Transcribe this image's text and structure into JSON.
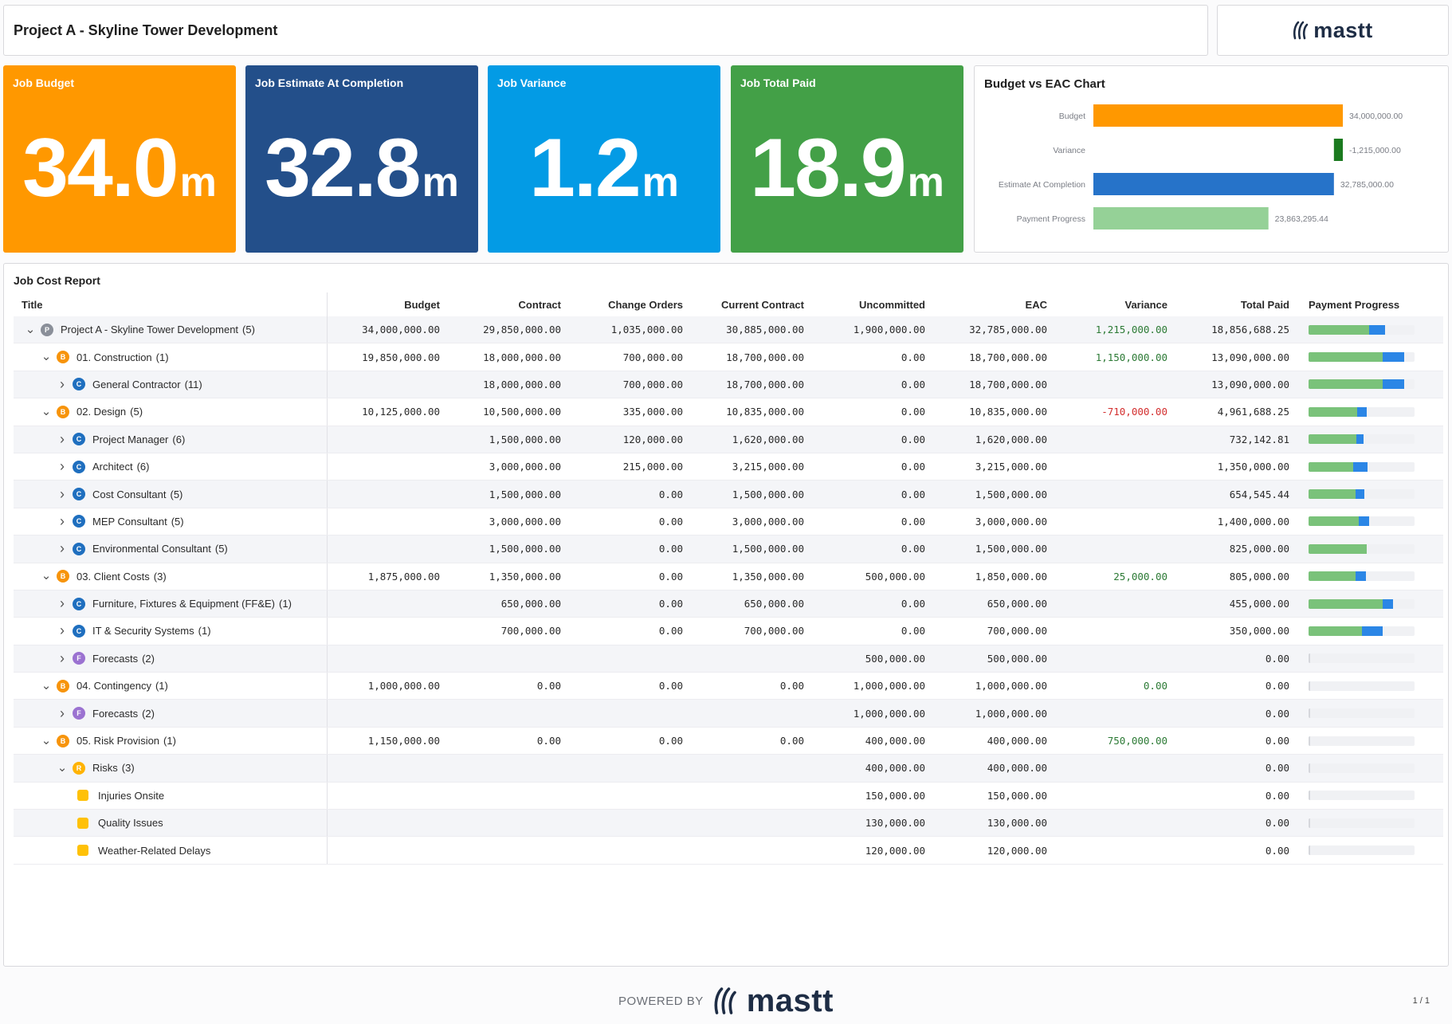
{
  "header": {
    "title": "Project A - Skyline Tower Development",
    "logo_text": "mastt"
  },
  "kpis": [
    {
      "label": "Job Budget",
      "value": "34.0",
      "unit": "m",
      "color": "#ff9800"
    },
    {
      "label": "Job Estimate At Completion",
      "value": "32.8",
      "unit": "m",
      "color": "#234f8a"
    },
    {
      "label": "Job Variance",
      "value": "1.2",
      "unit": "m",
      "color": "#039be5"
    },
    {
      "label": "Job Total Paid",
      "value": "18.9",
      "unit": "m",
      "color": "#43a047"
    }
  ],
  "chart": {
    "title": "Budget vs EAC Chart"
  },
  "chart_data": {
    "type": "bar",
    "orientation": "horizontal",
    "title": "Budget vs EAC Chart",
    "categories": [
      "Budget",
      "Variance",
      "Estimate At Completion",
      "Payment Progress"
    ],
    "values": [
      34000000,
      -1215000,
      32785000,
      23863295.44
    ],
    "labels": [
      "34,000,000.00",
      "-1,215,000.00",
      "32,785,000.00",
      "23,863,295.44"
    ],
    "colors": [
      "#ff9800",
      "#1b7a1f",
      "#2673c9",
      "#95d197"
    ],
    "xlim": [
      0,
      34000000
    ]
  },
  "report": {
    "title": "Job Cost Report",
    "columns": [
      "Title",
      "Budget",
      "Contract",
      "Change Orders",
      "Current Contract",
      "Uncommitted",
      "EAC",
      "Variance",
      "Total Paid",
      "Payment Progress"
    ],
    "rows": [
      {
        "level": 0,
        "expanded": true,
        "badge": "P",
        "title": "Project A - Skyline Tower Development",
        "count": "(5)",
        "budget": "34,000,000.00",
        "contract": "29,850,000.00",
        "change_orders": "1,035,000.00",
        "current_contract": "30,885,000.00",
        "uncommitted": "1,900,000.00",
        "eac": "32,785,000.00",
        "variance": "1,215,000.00",
        "total_paid": "18,856,688.25",
        "progress": {
          "paid": 0.57,
          "committed": 0.15
        }
      },
      {
        "level": 1,
        "expanded": true,
        "badge": "B",
        "title": "01. Construction",
        "count": "(1)",
        "budget": "19,850,000.00",
        "contract": "18,000,000.00",
        "change_orders": "700,000.00",
        "current_contract": "18,700,000.00",
        "uncommitted": "0.00",
        "eac": "18,700,000.00",
        "variance": "1,150,000.00",
        "total_paid": "13,090,000.00",
        "progress": {
          "paid": 0.7,
          "committed": 0.2
        }
      },
      {
        "level": 2,
        "expanded": false,
        "badge": "C",
        "title": "General Contractor",
        "count": "(11)",
        "budget": "",
        "contract": "18,000,000.00",
        "change_orders": "700,000.00",
        "current_contract": "18,700,000.00",
        "uncommitted": "0.00",
        "eac": "18,700,000.00",
        "variance": "",
        "total_paid": "13,090,000.00",
        "progress": {
          "paid": 0.7,
          "committed": 0.2
        }
      },
      {
        "level": 1,
        "expanded": true,
        "badge": "B",
        "title": "02. Design",
        "count": "(5)",
        "budget": "10,125,000.00",
        "contract": "10,500,000.00",
        "change_orders": "335,000.00",
        "current_contract": "10,835,000.00",
        "uncommitted": "0.00",
        "eac": "10,835,000.00",
        "variance": "-710,000.00",
        "total_paid": "4,961,688.25",
        "progress": {
          "paid": 0.46,
          "committed": 0.09
        }
      },
      {
        "level": 2,
        "expanded": false,
        "badge": "C",
        "title": "Project Manager",
        "count": "(6)",
        "budget": "",
        "contract": "1,500,000.00",
        "change_orders": "120,000.00",
        "current_contract": "1,620,000.00",
        "uncommitted": "0.00",
        "eac": "1,620,000.00",
        "variance": "",
        "total_paid": "732,142.81",
        "progress": {
          "paid": 0.45,
          "committed": 0.07
        }
      },
      {
        "level": 2,
        "expanded": false,
        "badge": "C",
        "title": "Architect",
        "count": "(6)",
        "budget": "",
        "contract": "3,000,000.00",
        "change_orders": "215,000.00",
        "current_contract": "3,215,000.00",
        "uncommitted": "0.00",
        "eac": "3,215,000.00",
        "variance": "",
        "total_paid": "1,350,000.00",
        "progress": {
          "paid": 0.42,
          "committed": 0.14
        }
      },
      {
        "level": 2,
        "expanded": false,
        "badge": "C",
        "title": "Cost Consultant",
        "count": "(5)",
        "budget": "",
        "contract": "1,500,000.00",
        "change_orders": "0.00",
        "current_contract": "1,500,000.00",
        "uncommitted": "0.00",
        "eac": "1,500,000.00",
        "variance": "",
        "total_paid": "654,545.44",
        "progress": {
          "paid": 0.44,
          "committed": 0.09
        }
      },
      {
        "level": 2,
        "expanded": false,
        "badge": "C",
        "title": "MEP Consultant",
        "count": "(5)",
        "budget": "",
        "contract": "3,000,000.00",
        "change_orders": "0.00",
        "current_contract": "3,000,000.00",
        "uncommitted": "0.00",
        "eac": "3,000,000.00",
        "variance": "",
        "total_paid": "1,400,000.00",
        "progress": {
          "paid": 0.47,
          "committed": 0.1
        }
      },
      {
        "level": 2,
        "expanded": false,
        "badge": "C",
        "title": "Environmental Consultant",
        "count": "(5)",
        "budget": "",
        "contract": "1,500,000.00",
        "change_orders": "0.00",
        "current_contract": "1,500,000.00",
        "uncommitted": "0.00",
        "eac": "1,500,000.00",
        "variance": "",
        "total_paid": "825,000.00",
        "progress": {
          "paid": 0.55,
          "committed": 0
        }
      },
      {
        "level": 1,
        "expanded": true,
        "badge": "B",
        "title": "03. Client Costs",
        "count": "(3)",
        "budget": "1,875,000.00",
        "contract": "1,350,000.00",
        "change_orders": "0.00",
        "current_contract": "1,350,000.00",
        "uncommitted": "500,000.00",
        "eac": "1,850,000.00",
        "variance": "25,000.00",
        "total_paid": "805,000.00",
        "progress": {
          "paid": 0.44,
          "committed": 0.1
        }
      },
      {
        "level": 2,
        "expanded": false,
        "badge": "C",
        "title": "Furniture, Fixtures & Equipment (FF&E)",
        "count": "(1)",
        "budget": "",
        "contract": "650,000.00",
        "change_orders": "0.00",
        "current_contract": "650,000.00",
        "uncommitted": "0.00",
        "eac": "650,000.00",
        "variance": "",
        "total_paid": "455,000.00",
        "progress": {
          "paid": 0.7,
          "committed": 0.1
        }
      },
      {
        "level": 2,
        "expanded": false,
        "badge": "C",
        "title": "IT & Security Systems",
        "count": "(1)",
        "budget": "",
        "contract": "700,000.00",
        "change_orders": "0.00",
        "current_contract": "700,000.00",
        "uncommitted": "0.00",
        "eac": "700,000.00",
        "variance": "",
        "total_paid": "350,000.00",
        "progress": {
          "paid": 0.5,
          "committed": 0.2
        }
      },
      {
        "level": 2,
        "expanded": false,
        "badge": "F",
        "title": "Forecasts",
        "count": "(2)",
        "budget": "",
        "contract": "",
        "change_orders": "",
        "current_contract": "",
        "uncommitted": "500,000.00",
        "eac": "500,000.00",
        "variance": "",
        "total_paid": "0.00",
        "progress": {
          "paid": 0,
          "committed": 0
        }
      },
      {
        "level": 1,
        "expanded": true,
        "badge": "B",
        "title": "04. Contingency",
        "count": "(1)",
        "budget": "1,000,000.00",
        "contract": "0.00",
        "change_orders": "0.00",
        "current_contract": "0.00",
        "uncommitted": "1,000,000.00",
        "eac": "1,000,000.00",
        "variance": "0.00",
        "total_paid": "0.00",
        "progress": {
          "paid": 0,
          "committed": 0
        }
      },
      {
        "level": 2,
        "expanded": false,
        "badge": "F",
        "title": "Forecasts",
        "count": "(2)",
        "budget": "",
        "contract": "",
        "change_orders": "",
        "current_contract": "",
        "uncommitted": "1,000,000.00",
        "eac": "1,000,000.00",
        "variance": "",
        "total_paid": "0.00",
        "progress": {
          "paid": 0,
          "committed": 0
        }
      },
      {
        "level": 1,
        "expanded": true,
        "badge": "B",
        "title": "05. Risk Provision",
        "count": "(1)",
        "budget": "1,150,000.00",
        "contract": "0.00",
        "change_orders": "0.00",
        "current_contract": "0.00",
        "uncommitted": "400,000.00",
        "eac": "400,000.00",
        "variance": "750,000.00",
        "total_paid": "0.00",
        "progress": {
          "paid": 0,
          "committed": 0
        }
      },
      {
        "level": 2,
        "expanded": true,
        "badge": "R",
        "title": "Risks",
        "count": "(3)",
        "budget": "",
        "contract": "",
        "change_orders": "",
        "current_contract": "",
        "uncommitted": "400,000.00",
        "eac": "400,000.00",
        "variance": "",
        "total_paid": "0.00",
        "progress": {
          "paid": 0,
          "committed": 0
        }
      },
      {
        "level": 3,
        "leaf": true,
        "title": "Injuries Onsite",
        "count": "",
        "budget": "",
        "contract": "",
        "change_orders": "",
        "current_contract": "",
        "uncommitted": "150,000.00",
        "eac": "150,000.00",
        "variance": "",
        "total_paid": "0.00",
        "progress": {
          "paid": 0,
          "committed": 0
        }
      },
      {
        "level": 3,
        "leaf": true,
        "title": "Quality Issues",
        "count": "",
        "budget": "",
        "contract": "",
        "change_orders": "",
        "current_contract": "",
        "uncommitted": "130,000.00",
        "eac": "130,000.00",
        "variance": "",
        "total_paid": "0.00",
        "progress": {
          "paid": 0,
          "committed": 0
        }
      },
      {
        "level": 3,
        "leaf": true,
        "title": "Weather-Related Delays",
        "count": "",
        "budget": "",
        "contract": "",
        "change_orders": "",
        "current_contract": "",
        "uncommitted": "120,000.00",
        "eac": "120,000.00",
        "variance": "",
        "total_paid": "0.00",
        "progress": {
          "paid": 0,
          "committed": 0
        }
      }
    ]
  },
  "footer": {
    "powered_by": "POWERED BY",
    "logo_text": "mastt",
    "page": "1 / 1"
  }
}
